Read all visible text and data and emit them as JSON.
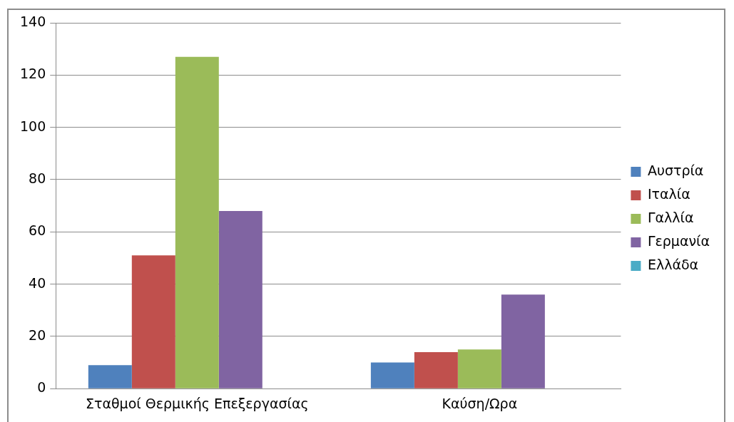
{
  "chart_data": {
    "type": "bar",
    "categories": [
      "Σταθμοί Θερμικής Επεξεργασίας",
      "Καύση/Ωρα"
    ],
    "series": [
      {
        "name": "Αυστρία",
        "color": "#4f81bd",
        "values": [
          9,
          10
        ]
      },
      {
        "name": "Ιταλία",
        "color": "#c0504d",
        "values": [
          51,
          14
        ]
      },
      {
        "name": "Γαλλία",
        "color": "#9bbb59",
        "values": [
          127,
          15
        ]
      },
      {
        "name": "Γερμανία",
        "color": "#8064a2",
        "values": [
          68,
          36
        ]
      },
      {
        "name": "Ελλάδα",
        "color": "#4bacc6",
        "values": [
          0,
          0
        ]
      }
    ],
    "ylim": [
      0,
      140
    ],
    "yticks": [
      0,
      20,
      40,
      60,
      80,
      100,
      120,
      140
    ],
    "grid": "y",
    "legend": "right"
  }
}
